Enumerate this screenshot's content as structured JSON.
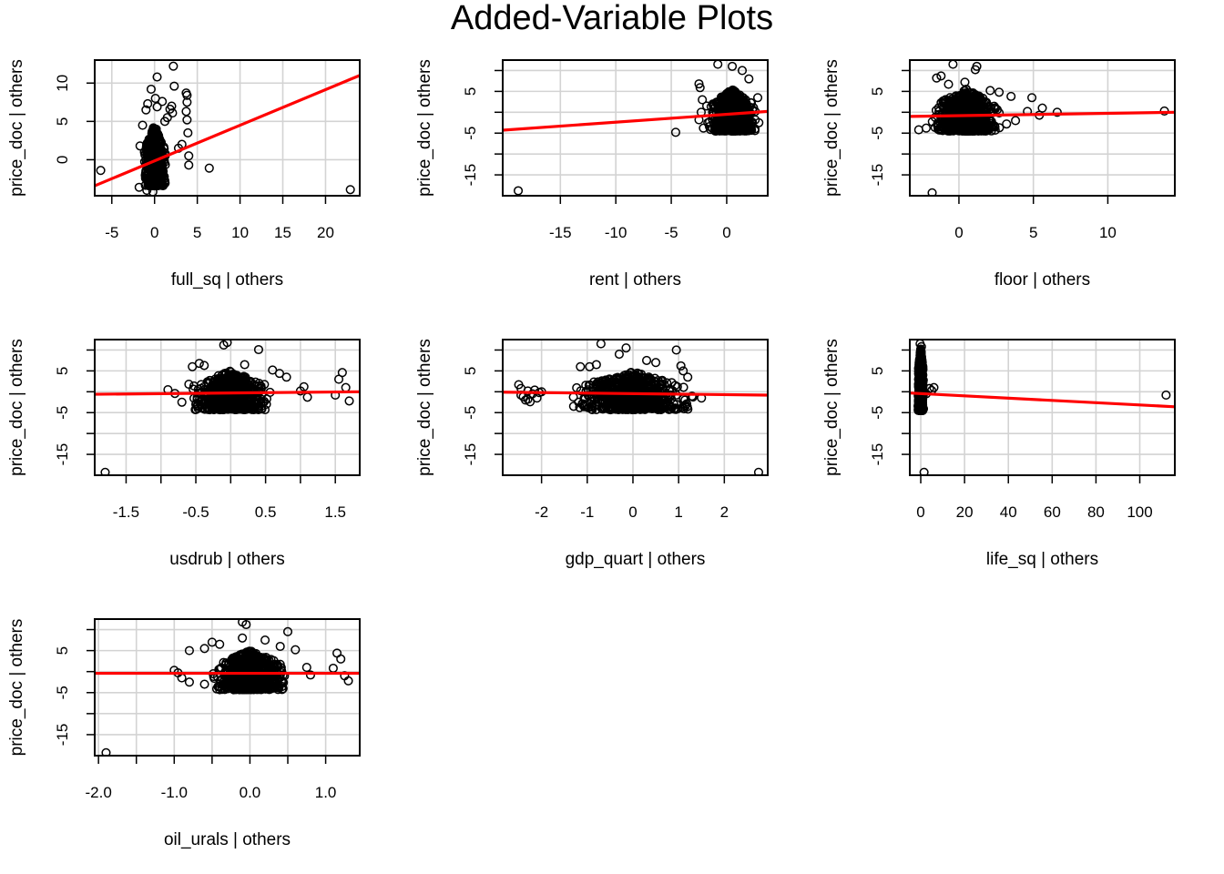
{
  "page": {
    "title": "Added-Variable Plots"
  },
  "colors": {
    "points": "#000000",
    "fit_line": "#ff0000",
    "grid": "#d3d3d3"
  },
  "chart_data": [
    {
      "type": "scatter",
      "title": "",
      "xlabel": "full_sq | others",
      "ylabel": "price_doc  | others",
      "xlim": [
        -7,
        24
      ],
      "ylim": [
        -4.7,
        13
      ],
      "xticks": [
        -5,
        0,
        5,
        10,
        15,
        20
      ],
      "xtick_labels": [
        "-5",
        "0",
        "5",
        "10",
        "15",
        "20"
      ],
      "yticks": [
        0,
        5,
        10
      ],
      "ytick_labels": [
        "0",
        "5",
        "10"
      ],
      "grid": true,
      "fit_line": {
        "x": [
          -7,
          24
        ],
        "y": [
          -3.4,
          11.0
        ]
      },
      "cluster": {
        "x_center": 0,
        "x_spread": 0.9,
        "y_low": -3.4,
        "y_high": 4.5
      },
      "points": [
        {
          "x": -6.3,
          "y": -1.4
        },
        {
          "x": 2.2,
          "y": 12.2
        },
        {
          "x": 0.3,
          "y": 10.8
        },
        {
          "x": 2.3,
          "y": 9.6
        },
        {
          "x": 3.7,
          "y": 8.7
        },
        {
          "x": 3.8,
          "y": 8.4
        },
        {
          "x": 3.8,
          "y": 7.5
        },
        {
          "x": 3.7,
          "y": 6.3
        },
        {
          "x": 3.8,
          "y": 5.2
        },
        {
          "x": 3.9,
          "y": 3.5
        },
        {
          "x": 3.2,
          "y": 2.0
        },
        {
          "x": 2.8,
          "y": 1.5
        },
        {
          "x": 4.0,
          "y": 0.5
        },
        {
          "x": 4.0,
          "y": -0.7
        },
        {
          "x": 6.4,
          "y": -1.1
        },
        {
          "x": 22.9,
          "y": -3.9
        },
        {
          "x": 2.0,
          "y": 7.0
        },
        {
          "x": 1.8,
          "y": 6.6
        },
        {
          "x": 2.1,
          "y": 6.1
        },
        {
          "x": 1.5,
          "y": 5.5
        },
        {
          "x": 1.2,
          "y": 5.0
        },
        {
          "x": -0.4,
          "y": 9.2
        },
        {
          "x": 0.1,
          "y": 8.0
        },
        {
          "x": -0.8,
          "y": 7.3
        },
        {
          "x": 0.9,
          "y": 7.6
        },
        {
          "x": -1.0,
          "y": 6.5
        },
        {
          "x": 0.3,
          "y": 6.9
        },
        {
          "x": -1.8,
          "y": -3.6
        },
        {
          "x": -0.9,
          "y": -4.0
        },
        {
          "x": -0.2,
          "y": -4.2
        },
        {
          "x": -1.4,
          "y": 4.5
        },
        {
          "x": -1.7,
          "y": 1.8
        }
      ]
    },
    {
      "type": "scatter",
      "title": "",
      "xlabel": "rent | others",
      "ylabel": "price_doc  | others",
      "xlim": [
        -20.2,
        3.7
      ],
      "ylim": [
        -20,
        12.5
      ],
      "xticks": [
        -15,
        -10,
        -5,
        0
      ],
      "xtick_labels": [
        "-15",
        "-10",
        "-5",
        "0"
      ],
      "yticks": [
        -15,
        -5,
        5
      ],
      "ytick_labels": [
        "-15",
        "-5",
        "5"
      ],
      "yticks_minor": [
        -10,
        0,
        10
      ],
      "grid": true,
      "fit_line": {
        "x": [
          -20.2,
          3.7
        ],
        "y": [
          -4.3,
          0.2
        ]
      },
      "cluster": {
        "x_center": 0.5,
        "x_spread": 1.5,
        "y_low": -4.5,
        "y_high": 5.5
      },
      "points": [
        {
          "x": -18.8,
          "y": -18.8
        },
        {
          "x": -4.6,
          "y": -4.8
        },
        {
          "x": -2.5,
          "y": 6.8
        },
        {
          "x": -2.4,
          "y": 5.9
        },
        {
          "x": -2.2,
          "y": 3.0
        },
        {
          "x": -2.3,
          "y": 0.0
        },
        {
          "x": -2.5,
          "y": -1.8
        },
        {
          "x": -2.1,
          "y": -3.8
        },
        {
          "x": -1.7,
          "y": -2.5
        },
        {
          "x": -1.8,
          "y": 1.5
        },
        {
          "x": -0.8,
          "y": 11.5
        },
        {
          "x": 0.5,
          "y": 11.0
        },
        {
          "x": 1.4,
          "y": 10.0
        },
        {
          "x": 2.0,
          "y": 8.0
        },
        {
          "x": 2.8,
          "y": 3.5
        },
        {
          "x": 2.9,
          "y": -2.5
        },
        {
          "x": -0.9,
          "y": -3.6
        },
        {
          "x": 1.8,
          "y": -3.9
        }
      ]
    },
    {
      "type": "scatter",
      "title": "",
      "xlabel": "floor | others",
      "ylabel": "price_doc  | others",
      "xlim": [
        -3.3,
        14.5
      ],
      "ylim": [
        -20,
        12.5
      ],
      "xticks": [
        0,
        5,
        10
      ],
      "xtick_labels": [
        "0",
        "5",
        "10"
      ],
      "yticks": [
        -15,
        -5,
        5
      ],
      "ytick_labels": [
        "-15",
        "-5",
        "5"
      ],
      "yticks_minor": [
        -10,
        0,
        10
      ],
      "grid": true,
      "fit_line": {
        "x": [
          -3.3,
          14.5
        ],
        "y": [
          -1.0,
          0.0
        ]
      },
      "cluster": {
        "x_center": 0.5,
        "x_spread": 1.6,
        "y_low": -4.5,
        "y_high": 5.5
      },
      "points": [
        {
          "x": -1.8,
          "y": -19.3
        },
        {
          "x": -0.4,
          "y": 11.5
        },
        {
          "x": 1.2,
          "y": 11.0
        },
        {
          "x": 1.1,
          "y": 10.2
        },
        {
          "x": 13.8,
          "y": 0.3
        },
        {
          "x": 6.6,
          "y": 0.0
        },
        {
          "x": 5.6,
          "y": 1.0
        },
        {
          "x": 5.4,
          "y": -0.7
        },
        {
          "x": 4.9,
          "y": 3.5
        },
        {
          "x": 4.6,
          "y": 0.2
        },
        {
          "x": 3.5,
          "y": 3.8
        },
        {
          "x": 2.7,
          "y": 4.8
        },
        {
          "x": 2.1,
          "y": 5.2
        },
        {
          "x": -1.5,
          "y": 8.2
        },
        {
          "x": -1.2,
          "y": 8.7
        },
        {
          "x": -2.7,
          "y": -4.2
        },
        {
          "x": -2.2,
          "y": -3.8
        },
        {
          "x": 3.2,
          "y": -2.8
        },
        {
          "x": 3.8,
          "y": -2.0
        },
        {
          "x": 2.4,
          "y": -3.3
        },
        {
          "x": -0.7,
          "y": 6.7
        },
        {
          "x": 0.4,
          "y": 7.2
        }
      ]
    },
    {
      "type": "scatter",
      "title": "",
      "xlabel": "usdrub | others",
      "ylabel": "price_doc  | others",
      "xlim": [
        -1.95,
        1.85
      ],
      "ylim": [
        -20,
        12.5
      ],
      "xticks": [
        -1.5,
        -0.5,
        0.5,
        1.5
      ],
      "xtick_labels": [
        "-1.5",
        "-0.5",
        "0.5",
        "1.5"
      ],
      "xticks_minor": [
        -1.0,
        0.0,
        1.0
      ],
      "yticks": [
        -15,
        -5,
        5
      ],
      "ytick_labels": [
        "-15",
        "-5",
        "5"
      ],
      "yticks_minor": [
        -10,
        0,
        10
      ],
      "grid": true,
      "fit_line": {
        "x": [
          -1.95,
          1.85
        ],
        "y": [
          -0.6,
          0.0
        ]
      },
      "cluster": {
        "x_center": 0.0,
        "x_spread": 0.4,
        "y_low": -4.3,
        "y_high": 5.0
      },
      "points": [
        {
          "x": -1.8,
          "y": -19.3
        },
        {
          "x": -0.05,
          "y": 11.8
        },
        {
          "x": -0.1,
          "y": 11.2
        },
        {
          "x": 0.4,
          "y": 10.1
        },
        {
          "x": -0.45,
          "y": 6.8
        },
        {
          "x": -0.38,
          "y": 6.3
        },
        {
          "x": -0.55,
          "y": 6.0
        },
        {
          "x": 0.2,
          "y": 6.5
        },
        {
          "x": 0.6,
          "y": 5.2
        },
        {
          "x": 0.7,
          "y": 4.4
        },
        {
          "x": 0.8,
          "y": 3.5
        },
        {
          "x": 1.6,
          "y": 4.6
        },
        {
          "x": 1.55,
          "y": 3.0
        },
        {
          "x": 1.7,
          "y": -2.2
        },
        {
          "x": 1.5,
          "y": -0.8
        },
        {
          "x": 1.65,
          "y": 1.0
        },
        {
          "x": 1.05,
          "y": 1.2
        },
        {
          "x": 1.1,
          "y": -1.3
        },
        {
          "x": 1.0,
          "y": 0.2
        },
        {
          "x": -0.9,
          "y": 0.5
        },
        {
          "x": -0.8,
          "y": -0.4
        },
        {
          "x": -0.7,
          "y": -2.5
        },
        {
          "x": -0.6,
          "y": 1.8
        },
        {
          "x": -0.5,
          "y": -3.0
        },
        {
          "x": -0.3,
          "y": -4.3
        }
      ]
    },
    {
      "type": "scatter",
      "title": "",
      "xlabel": "gdp_quart | others",
      "ylabel": "price_doc  | others",
      "xlim": [
        -2.85,
        2.95
      ],
      "ylim": [
        -20,
        12.5
      ],
      "xticks": [
        -2,
        -1,
        0,
        1,
        2
      ],
      "xtick_labels": [
        "-2",
        "-1",
        "0",
        "1",
        "2"
      ],
      "yticks": [
        -15,
        -5,
        5
      ],
      "ytick_labels": [
        "-15",
        "-5",
        "5"
      ],
      "yticks_minor": [
        -10,
        0,
        10
      ],
      "grid": true,
      "fit_line": {
        "x": [
          -2.85,
          2.95
        ],
        "y": [
          -0.1,
          -0.8
        ]
      },
      "cluster": {
        "x_center": 0.0,
        "x_spread": 0.9,
        "y_low": -4.3,
        "y_high": 4.8
      },
      "points": [
        {
          "x": 2.75,
          "y": -19.3
        },
        {
          "x": -0.7,
          "y": 11.5
        },
        {
          "x": -0.15,
          "y": 10.5
        },
        {
          "x": 0.95,
          "y": 10.0
        },
        {
          "x": -0.3,
          "y": 9.0
        },
        {
          "x": 0.3,
          "y": 7.5
        },
        {
          "x": 0.5,
          "y": 7.0
        },
        {
          "x": -0.8,
          "y": 6.5
        },
        {
          "x": 1.05,
          "y": 6.2
        },
        {
          "x": -0.95,
          "y": 6.0
        },
        {
          "x": 1.1,
          "y": 5.0
        },
        {
          "x": 1.2,
          "y": 3.5
        },
        {
          "x": 1.5,
          "y": -1.5
        },
        {
          "x": -1.15,
          "y": 6.0
        },
        {
          "x": -1.05,
          "y": -3.0
        },
        {
          "x": 0.65,
          "y": -4.0
        },
        {
          "x": -0.3,
          "y": -3.8
        },
        {
          "x": -2.5,
          "y": 1.7
        },
        {
          "x": -2.45,
          "y": 0.8
        },
        {
          "x": -2.3,
          "y": 0.2
        },
        {
          "x": -2.2,
          "y": -0.5
        },
        {
          "x": -2.4,
          "y": -1.2
        },
        {
          "x": -2.35,
          "y": -2.0
        },
        {
          "x": -2.25,
          "y": -2.4
        },
        {
          "x": -2.15,
          "y": 0.4
        },
        {
          "x": -2.05,
          "y": -0.2
        },
        {
          "x": -2.45,
          "y": -0.8
        },
        {
          "x": -2.1,
          "y": -1.5
        },
        {
          "x": -2.0,
          "y": 0.0
        },
        {
          "x": -2.3,
          "y": -1.8
        }
      ]
    },
    {
      "type": "scatter",
      "title": "",
      "xlabel": "life_sq | others",
      "ylabel": "price_doc  | others",
      "xlim": [
        -5,
        116
      ],
      "ylim": [
        -20,
        12.5
      ],
      "xticks": [
        0,
        20,
        40,
        60,
        80,
        100
      ],
      "xtick_labels": [
        "0",
        "20",
        "40",
        "60",
        "80",
        "100"
      ],
      "yticks": [
        -15,
        -5,
        5
      ],
      "ytick_labels": [
        "-15",
        "-5",
        "5"
      ],
      "yticks_minor": [
        -10,
        0,
        10
      ],
      "grid": true,
      "fit_line": {
        "x": [
          -5,
          116
        ],
        "y": [
          -0.3,
          -3.6
        ]
      },
      "cluster": {
        "x_center": 0.0,
        "x_spread": 0.9,
        "y_low": -4.5,
        "y_high": 10.5
      },
      "points": [
        {
          "x": 1.5,
          "y": -19.3
        },
        {
          "x": 112,
          "y": -0.8
        },
        {
          "x": 6,
          "y": 1.0
        },
        {
          "x": 5,
          "y": 0.3
        },
        {
          "x": 4,
          "y": 0.8
        },
        {
          "x": 2.5,
          "y": -0.5
        },
        {
          "x": -0.3,
          "y": 11.5
        },
        {
          "x": 0.3,
          "y": 10.8
        },
        {
          "x": 0.0,
          "y": 10.2
        }
      ]
    },
    {
      "type": "scatter",
      "title": "",
      "xlabel": "oil_urals | others",
      "ylabel": "price_doc  | others",
      "xlim": [
        -2.05,
        1.45
      ],
      "ylim": [
        -20,
        12.5
      ],
      "xticks": [
        -2.0,
        -1.0,
        0.0,
        1.0
      ],
      "xtick_labels": [
        "-2.0",
        "-1.0",
        "0.0",
        "1.0"
      ],
      "xticks_minor": [
        -1.5,
        -0.5,
        0.5
      ],
      "yticks": [
        -15,
        -5,
        5
      ],
      "ytick_labels": [
        "-15",
        "-5",
        "5"
      ],
      "yticks_minor": [
        -10,
        0,
        10
      ],
      "grid": true,
      "fit_line": {
        "x": [
          -2.05,
          1.45
        ],
        "y": [
          -0.4,
          -0.4
        ]
      },
      "cluster": {
        "x_center": 0.0,
        "x_spread": 0.35,
        "y_low": -4.3,
        "y_high": 5.0
      },
      "points": [
        {
          "x": -1.9,
          "y": -19.3
        },
        {
          "x": -0.1,
          "y": 11.8
        },
        {
          "x": -0.05,
          "y": 11.2
        },
        {
          "x": 0.5,
          "y": 9.5
        },
        {
          "x": -0.1,
          "y": 8.0
        },
        {
          "x": -0.5,
          "y": 7.0
        },
        {
          "x": -0.4,
          "y": 6.5
        },
        {
          "x": -0.8,
          "y": 5.0
        },
        {
          "x": -0.6,
          "y": 5.5
        },
        {
          "x": 0.2,
          "y": 7.5
        },
        {
          "x": 0.4,
          "y": 6.0
        },
        {
          "x": 0.6,
          "y": 5.2
        },
        {
          "x": 1.15,
          "y": 4.4
        },
        {
          "x": 1.2,
          "y": 3.0
        },
        {
          "x": 1.3,
          "y": -2.2
        },
        {
          "x": 1.25,
          "y": -1.0
        },
        {
          "x": 1.1,
          "y": 0.8
        },
        {
          "x": 0.75,
          "y": 1.0
        },
        {
          "x": 0.8,
          "y": -0.8
        },
        {
          "x": -1.0,
          "y": 0.3
        },
        {
          "x": -0.95,
          "y": -0.3
        },
        {
          "x": -0.9,
          "y": -1.5
        },
        {
          "x": -0.8,
          "y": -2.5
        },
        {
          "x": -0.4,
          "y": -4.3
        },
        {
          "x": -0.6,
          "y": -3.0
        }
      ]
    }
  ]
}
